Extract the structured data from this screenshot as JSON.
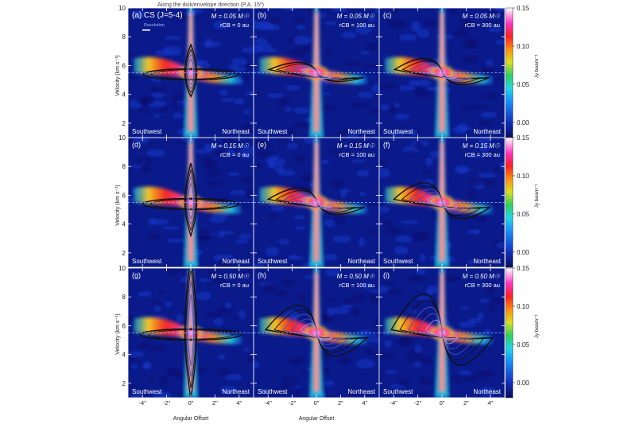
{
  "figure": {
    "header": "Along the disk/envelope direction (P.A. 15º)",
    "resolution_label": "Resolution",
    "xlabel": "Angular Offset",
    "ylabel": "Velocity (km s⁻¹)",
    "colorbar_label": "Jy beam⁻¹",
    "left_side": "Southwest",
    "right_side": "Northeast"
  },
  "chart_data": {
    "type": "heatmap",
    "description_of_plot": "position-velocity diagrams of CS (J=5-4) with model contours",
    "xlim": [
      -5.2,
      5.2
    ],
    "ylim": [
      1,
      10
    ],
    "x_ticks": [
      -4,
      -2,
      0,
      2,
      4
    ],
    "x_tick_labels": [
      "-4\"",
      "-2\"",
      "0\"",
      "2\"",
      "4\""
    ],
    "y_ticks": [
      2,
      4,
      6,
      8,
      10
    ],
    "y_tick_labels": [
      "2",
      "4",
      "6",
      "8",
      "10"
    ],
    "colorbar": {
      "min": -0.02,
      "max": 0.15,
      "ticks": [
        0.15,
        0.1,
        0.05,
        0.0
      ],
      "tick_labels": [
        "0.15",
        "0.10",
        "0.05",
        "0.00"
      ]
    },
    "systemic_velocity": 5.5,
    "panels": [
      {
        "label": "(a) CS (J=5-4)",
        "mass": "M = 0.05 M☉",
        "rcb": "rCB = 0 au"
      },
      {
        "label": "(b)",
        "mass": "M = 0.05 M☉",
        "rcb": "rCB = 100 au"
      },
      {
        "label": "(c)",
        "mass": "M = 0.05 M☉",
        "rcb": "rCB = 300 au"
      },
      {
        "label": "(d)",
        "mass": "M = 0.15 M☉",
        "rcb": "rCB = 0 au"
      },
      {
        "label": "(e)",
        "mass": "M = 0.15 M☉",
        "rcb": "rCB = 100 au"
      },
      {
        "label": "(f)",
        "mass": "M = 0.15 M☉",
        "rcb": "rCB = 300 au"
      },
      {
        "label": "(g)",
        "mass": "M = 0.50 M☉",
        "rcb": "rCB = 0 au"
      },
      {
        "label": "(h)",
        "mass": "M = 0.50 M☉",
        "rcb": "rCB = 100 au"
      },
      {
        "label": "(i)",
        "mass": "M = 0.50 M☉",
        "rcb": "rCB = 300 au"
      }
    ]
  },
  "colors": {
    "background": "#0a1a8a",
    "systemic_line": "#8fb8ff",
    "model_contour": "#111111",
    "model_contour_inner": "#9a9ae0"
  }
}
